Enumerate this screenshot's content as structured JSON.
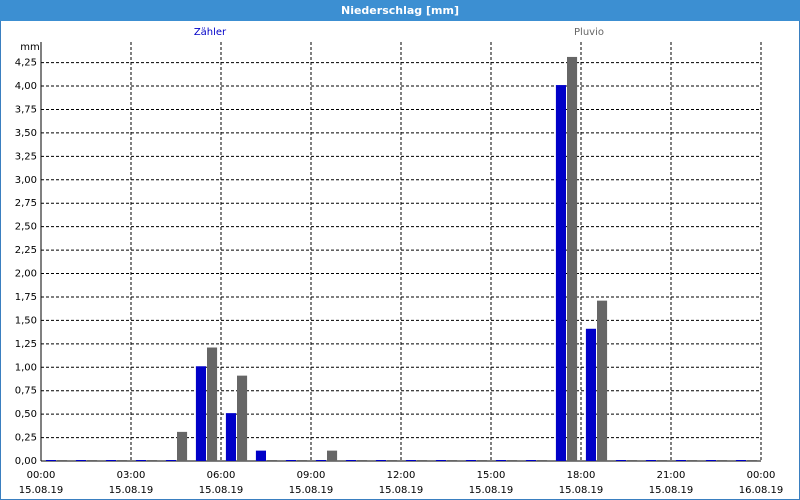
{
  "window_title": "Niederschlag [mm]",
  "chart_data": {
    "type": "bar",
    "y_label": "mm",
    "x": [
      "2019-08-15 00:00",
      "2019-08-15 01:00",
      "2019-08-15 02:00",
      "2019-08-15 03:00",
      "2019-08-15 04:00",
      "2019-08-15 05:00",
      "2019-08-15 06:00",
      "2019-08-15 07:00",
      "2019-08-15 08:00",
      "2019-08-15 09:00",
      "2019-08-15 10:00",
      "2019-08-15 11:00",
      "2019-08-15 12:00",
      "2019-08-15 13:00",
      "2019-08-15 14:00",
      "2019-08-15 15:00",
      "2019-08-15 16:00",
      "2019-08-15 17:00",
      "2019-08-15 18:00",
      "2019-08-15 19:00",
      "2019-08-15 20:00",
      "2019-08-15 21:00",
      "2019-08-15 22:00",
      "2019-08-15 23:00"
    ],
    "series": [
      {
        "name": "Zähler",
        "color": "#0000c8",
        "values": [
          0,
          0,
          0,
          0,
          0,
          1.0,
          0.5,
          0.1,
          0,
          0,
          0,
          0,
          0,
          0,
          0,
          0,
          0,
          4.0,
          1.4,
          0,
          0,
          0,
          0,
          0
        ]
      },
      {
        "name": "Pluvio",
        "color": "#666666",
        "values": [
          0,
          0,
          0,
          0,
          0.3,
          1.2,
          0.9,
          0,
          0,
          0.1,
          0,
          0,
          0,
          0,
          0,
          0,
          0,
          4.3,
          1.7,
          0,
          0,
          0,
          0,
          0
        ]
      }
    ],
    "xlim": [
      "2019-08-15 00:00",
      "2019-08-16 00:00"
    ],
    "xticks": [
      {
        "value": "2019-08-15 00:00",
        "label": [
          "00:00",
          "15.08.19"
        ]
      },
      {
        "value": "2019-08-15 03:00",
        "label": [
          "03:00",
          "15.08.19"
        ]
      },
      {
        "value": "2019-08-15 06:00",
        "label": [
          "06:00",
          "15.08.19"
        ]
      },
      {
        "value": "2019-08-15 09:00",
        "label": [
          "09:00",
          "15.08.19"
        ]
      },
      {
        "value": "2019-08-15 12:00",
        "label": [
          "12:00",
          "15.08.19"
        ]
      },
      {
        "value": "2019-08-15 15:00",
        "label": [
          "15:00",
          "15.08.19"
        ]
      },
      {
        "value": "2019-08-15 18:00",
        "label": [
          "18:00",
          "15.08.19"
        ]
      },
      {
        "value": "2019-08-15 21:00",
        "label": [
          "21:00",
          "15.08.19"
        ]
      },
      {
        "value": "2019-08-16 00:00",
        "label": [
          "00:00",
          "16.08.19"
        ]
      }
    ],
    "ylim": [
      0,
      4.47
    ],
    "yticks": [
      {
        "value": 0,
        "label": "0,00"
      },
      {
        "value": 0.25,
        "label": "0,25"
      },
      {
        "value": 0.5,
        "label": "0,50"
      },
      {
        "value": 0.75,
        "label": "0,75"
      },
      {
        "value": 1,
        "label": "1,00"
      },
      {
        "value": 1.25,
        "label": "1,25"
      },
      {
        "value": 1.5,
        "label": "1,50"
      },
      {
        "value": 1.75,
        "label": "1,75"
      },
      {
        "value": 2,
        "label": "2,00"
      },
      {
        "value": 2.25,
        "label": "2,25"
      },
      {
        "value": 2.5,
        "label": "2,50"
      },
      {
        "value": 2.75,
        "label": "2,75"
      },
      {
        "value": 3,
        "label": "3,00"
      },
      {
        "value": 3.25,
        "label": "3,25"
      },
      {
        "value": 3.5,
        "label": "3,50"
      },
      {
        "value": 3.75,
        "label": "3,75"
      },
      {
        "value": 4,
        "label": "4,00"
      },
      {
        "value": 4.25,
        "label": "4,25"
      }
    ],
    "grid": true
  }
}
